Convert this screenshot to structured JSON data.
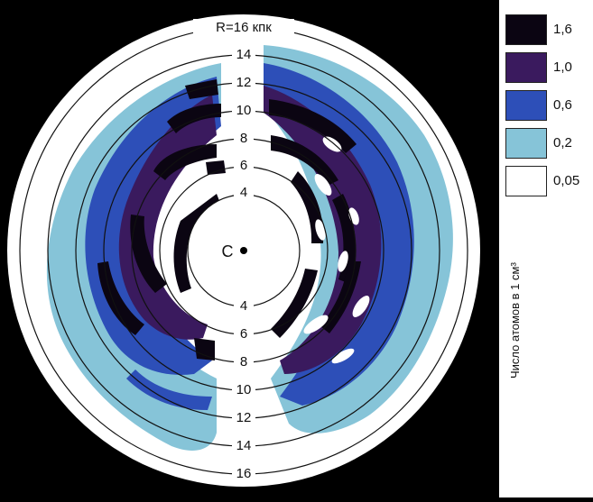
{
  "center_label": "C",
  "outer_ring_label": "R=16 кпк",
  "ring_labels_top": [
    "4",
    "6",
    "8",
    "10",
    "12",
    "14"
  ],
  "ring_labels_bottom": [
    "4",
    "6",
    "8",
    "10",
    "12",
    "14",
    "16"
  ],
  "legend": {
    "items": [
      {
        "label": "1,6",
        "color": "#0b0512"
      },
      {
        "label": "1,0",
        "color": "#3a1a5e"
      },
      {
        "label": "0,6",
        "color": "#2d4fb8"
      },
      {
        "label": "0,2",
        "color": "#86c4d8"
      },
      {
        "label": "0,05",
        "color": "#ffffff"
      }
    ],
    "caption": "Число атомов в 1 см³"
  },
  "colors": {
    "background": "#000000",
    "disk": "#ffffff",
    "ring_line": "#111111"
  }
}
